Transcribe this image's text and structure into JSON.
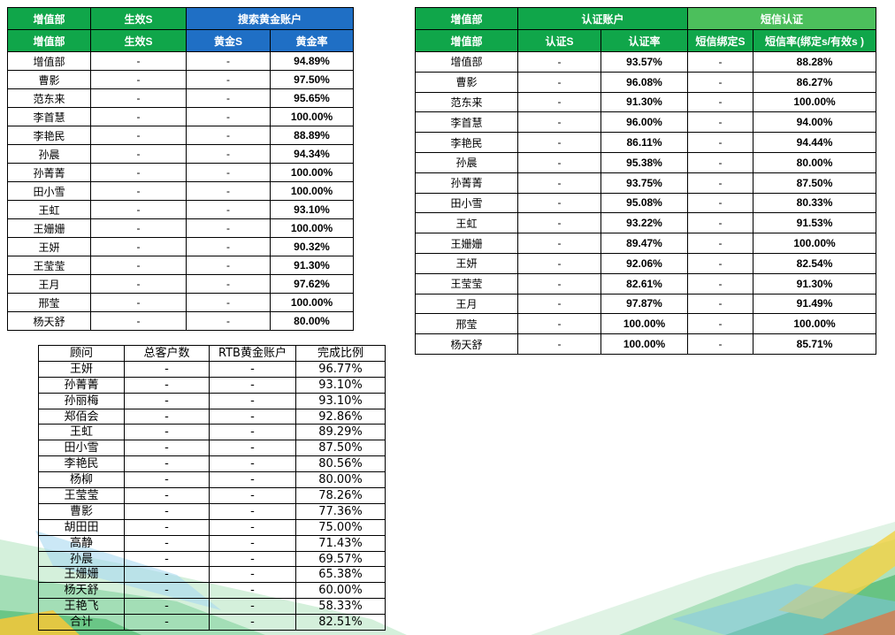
{
  "table1": {
    "group_headers": [
      "增值部",
      "生效S",
      "搜索黄金账户"
    ],
    "headers": [
      "增值部",
      "生效S",
      "黄金S",
      "黄金率"
    ],
    "rows": [
      [
        "增值部",
        "-",
        "-",
        "94.89%"
      ],
      [
        "曹影",
        "-",
        "-",
        "97.50%"
      ],
      [
        "范东来",
        "-",
        "-",
        "95.65%"
      ],
      [
        "李首慧",
        "-",
        "-",
        "100.00%"
      ],
      [
        "李艳民",
        "-",
        "-",
        "88.89%"
      ],
      [
        "孙晨",
        "-",
        "-",
        "94.34%"
      ],
      [
        "孙菁菁",
        "-",
        "-",
        "100.00%"
      ],
      [
        "田小雪",
        "-",
        "-",
        "100.00%"
      ],
      [
        "王虹",
        "-",
        "-",
        "93.10%"
      ],
      [
        "王姗姗",
        "-",
        "-",
        "100.00%"
      ],
      [
        "王妍",
        "-",
        "-",
        "90.32%"
      ],
      [
        "王莹莹",
        "-",
        "-",
        "91.30%"
      ],
      [
        "王月",
        "-",
        "-",
        "97.62%"
      ],
      [
        "邢莹",
        "-",
        "-",
        "100.00%"
      ],
      [
        "杨天舒",
        "-",
        "-",
        "80.00%"
      ]
    ]
  },
  "table2": {
    "group_headers": [
      "增值部",
      "认证账户",
      "短信认证"
    ],
    "headers": [
      "增值部",
      "认证S",
      "认证率",
      "短信绑定S",
      "短信率(绑定s/有效s )"
    ],
    "rows": [
      [
        "增值部",
        "-",
        "93.57%",
        "-",
        "88.28%"
      ],
      [
        "曹影",
        "-",
        "96.08%",
        "-",
        "86.27%"
      ],
      [
        "范东来",
        "-",
        "91.30%",
        "-",
        "100.00%"
      ],
      [
        "李首慧",
        "-",
        "96.00%",
        "-",
        "94.00%"
      ],
      [
        "李艳民",
        "-",
        "86.11%",
        "-",
        "94.44%"
      ],
      [
        "孙晨",
        "-",
        "95.38%",
        "-",
        "80.00%"
      ],
      [
        "孙菁菁",
        "-",
        "93.75%",
        "-",
        "87.50%"
      ],
      [
        "田小雪",
        "-",
        "95.08%",
        "-",
        "80.33%"
      ],
      [
        "王虹",
        "-",
        "93.22%",
        "-",
        "91.53%"
      ],
      [
        "王姗姗",
        "-",
        "89.47%",
        "-",
        "100.00%"
      ],
      [
        "王妍",
        "-",
        "92.06%",
        "-",
        "82.54%"
      ],
      [
        "王莹莹",
        "-",
        "82.61%",
        "-",
        "91.30%"
      ],
      [
        "王月",
        "-",
        "97.87%",
        "-",
        "91.49%"
      ],
      [
        "邢莹",
        "-",
        "100.00%",
        "-",
        "100.00%"
      ],
      [
        "杨天舒",
        "-",
        "100.00%",
        "-",
        "85.71%"
      ]
    ]
  },
  "table3": {
    "headers": [
      "顾问",
      "总客户数",
      "RTB黄金账户",
      "完成比例"
    ],
    "rows": [
      [
        "王妍",
        "-",
        "-",
        "96.77%"
      ],
      [
        "孙菁菁",
        "-",
        "-",
        "93.10%"
      ],
      [
        "孙丽梅",
        "-",
        "-",
        "93.10%"
      ],
      [
        "郑佰会",
        "-",
        "-",
        "92.86%"
      ],
      [
        "王虹",
        "-",
        "-",
        "89.29%"
      ],
      [
        "田小雪",
        "-",
        "-",
        "87.50%"
      ],
      [
        "李艳民",
        "-",
        "-",
        "80.56%"
      ],
      [
        "杨柳",
        "-",
        "-",
        "80.00%"
      ],
      [
        "王莹莹",
        "-",
        "-",
        "78.26%"
      ],
      [
        "曹影",
        "-",
        "-",
        "77.36%"
      ],
      [
        "胡田田",
        "-",
        "-",
        "75.00%"
      ],
      [
        "高静",
        "-",
        "-",
        "71.43%"
      ],
      [
        "孙晨",
        "-",
        "-",
        "69.57%"
      ],
      [
        "王姗姗",
        "-",
        "-",
        "65.38%"
      ],
      [
        "杨天舒",
        "-",
        "-",
        "60.00%"
      ],
      [
        "王艳飞",
        "-",
        "-",
        "58.33%"
      ],
      [
        "合计",
        "-",
        "-",
        "82.51%"
      ]
    ]
  },
  "colors": {
    "header_green": "#10a64a",
    "header_blue": "#1f6fc5",
    "header_light_green": "#4cbf5c"
  }
}
